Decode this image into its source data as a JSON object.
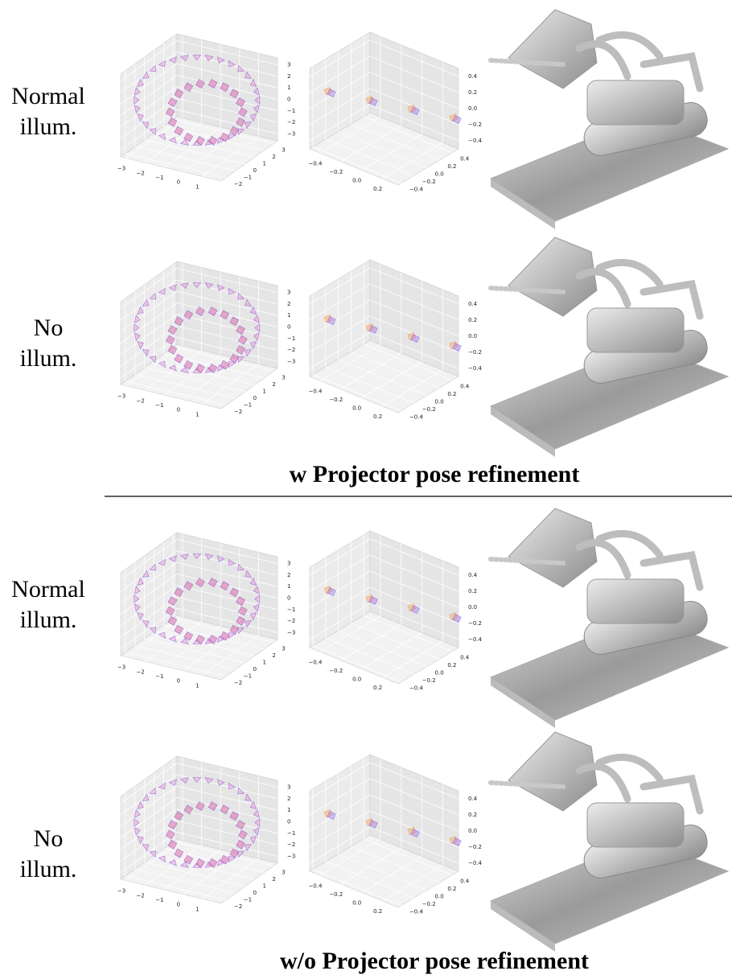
{
  "rows": [
    {
      "label": [
        "Normal",
        "illum."
      ],
      "plots": [
        {
          "xlim": [
            -3.3,
            2
          ],
          "xticks": [
            {
              "value": -3,
              "label": "−3"
            },
            {
              "value": -2,
              "label": "−2"
            },
            {
              "value": -1,
              "label": "−1"
            },
            0,
            1
          ],
          "ylim": [
            -2.5,
            3.4
          ],
          "yticks": [
            {
              "value": -2,
              "label": "−2"
            },
            {
              "value": -1,
              "label": "−1"
            },
            0,
            1,
            2,
            3
          ],
          "zlim": [
            -3.6,
            3.6
          ],
          "zticks": [
            {
              "value": -3,
              "label": "−3"
            },
            {
              "value": -2,
              "label": "−2"
            },
            {
              "value": -1,
              "label": "−1"
            },
            0,
            1,
            2,
            3
          ]
        },
        {
          "xlim": [
            -0.5,
            0.35
          ],
          "xticks": [
            {
              "value": -0.4,
              "label": "−0.4"
            },
            {
              "value": -0.2,
              "label": "−0.2"
            },
            {
              "value": 0,
              "label": "0.0"
            },
            0.2
          ],
          "ylim": [
            -0.45,
            0.5
          ],
          "yticks": [
            {
              "value": -0.4,
              "label": "−0.4"
            },
            {
              "value": -0.2,
              "label": "−0.2"
            },
            {
              "value": 0,
              "label": "0.0"
            },
            0.2,
            0.4
          ],
          "zlim": [
            -0.5,
            0.5
          ],
          "zticks": [
            {
              "value": -0.4,
              "label": "−0.4"
            },
            {
              "value": -0.2,
              "label": "−0.2"
            },
            {
              "value": 0,
              "label": "0.0"
            },
            0.2,
            0.4
          ]
        }
      ]
    },
    {
      "label": [
        "No",
        "illum."
      ],
      "plots": [
        {
          "xlim": [
            -3.3,
            2
          ],
          "xticks": [
            {
              "value": -3,
              "label": "−3"
            },
            {
              "value": -2,
              "label": "−2"
            },
            {
              "value": -1,
              "label": "−1"
            },
            0,
            1
          ],
          "ylim": [
            -2.5,
            3.4
          ],
          "yticks": [
            {
              "value": -2,
              "label": "−2"
            },
            {
              "value": -1,
              "label": "−1"
            },
            0,
            1,
            2,
            3
          ],
          "zlim": [
            -3.6,
            3.6
          ],
          "zticks": [
            {
              "value": -3,
              "label": "−3"
            },
            {
              "value": -2,
              "label": "−2"
            },
            {
              "value": -1,
              "label": "−1"
            },
            0,
            1,
            2,
            3
          ]
        },
        {
          "xlim": [
            -0.5,
            0.35
          ],
          "xticks": [
            {
              "value": -0.4,
              "label": "−0.4"
            },
            {
              "value": -0.2,
              "label": "−0.2"
            },
            {
              "value": 0,
              "label": "0.0"
            },
            0.2
          ],
          "ylim": [
            -0.45,
            0.5
          ],
          "yticks": [
            {
              "value": -0.4,
              "label": "−0.4"
            },
            {
              "value": -0.2,
              "label": "−0.2"
            },
            {
              "value": 0,
              "label": "0.0"
            },
            0.2,
            0.4
          ],
          "zlim": [
            -0.5,
            0.5
          ],
          "zticks": [
            {
              "value": -0.4,
              "label": "−0.4"
            },
            {
              "value": -0.2,
              "label": "−0.2"
            },
            {
              "value": 0,
              "label": "0.0"
            },
            0.2,
            0.4
          ]
        }
      ]
    },
    {
      "label": [
        "Normal",
        "illum."
      ],
      "plots": [
        {
          "xlim": [
            -3.3,
            2
          ],
          "xticks": [
            {
              "value": -3,
              "label": "−3"
            },
            {
              "value": -2,
              "label": "−2"
            },
            {
              "value": -1,
              "label": "−1"
            },
            0,
            1
          ],
          "ylim": [
            -2.5,
            3.4
          ],
          "yticks": [
            {
              "value": -2,
              "label": "−2"
            },
            {
              "value": -1,
              "label": "−1"
            },
            0,
            1,
            2,
            3
          ],
          "zlim": [
            -3.6,
            3.6
          ],
          "zticks": [
            {
              "value": -3,
              "label": "−3"
            },
            {
              "value": -2,
              "label": "−2"
            },
            {
              "value": -1,
              "label": "−1"
            },
            0,
            1,
            2,
            3
          ]
        },
        {
          "xlim": [
            -0.5,
            0.35
          ],
          "xticks": [
            {
              "value": -0.4,
              "label": "−0.4"
            },
            {
              "value": -0.2,
              "label": "−0.2"
            },
            {
              "value": 0,
              "label": "0.0"
            },
            0.2
          ],
          "ylim": [
            -0.45,
            0.5
          ],
          "yticks": [
            {
              "value": -0.4,
              "label": "−0.4"
            },
            {
              "value": -0.2,
              "label": "−0.2"
            },
            {
              "value": 0,
              "label": "0.0"
            },
            0.2,
            0.4
          ],
          "zlim": [
            -0.5,
            0.5
          ],
          "zticks": [
            {
              "value": -0.4,
              "label": "−0.4"
            },
            {
              "value": -0.2,
              "label": "−0.2"
            },
            {
              "value": 0,
              "label": "0.0"
            },
            0.2,
            0.4
          ]
        }
      ]
    },
    {
      "label": [
        "No",
        "illum."
      ],
      "plots": [
        {
          "xlim": [
            -3.3,
            2
          ],
          "xticks": [
            {
              "value": -3,
              "label": "−3"
            },
            {
              "value": -2,
              "label": "−2"
            },
            {
              "value": -1,
              "label": "−1"
            },
            0,
            1
          ],
          "ylim": [
            -2.5,
            3.4
          ],
          "yticks": [
            {
              "value": -2,
              "label": "−2"
            },
            {
              "value": -1,
              "label": "−1"
            },
            0,
            1,
            2,
            3
          ],
          "zlim": [
            -3.6,
            3.6
          ],
          "zticks": [
            {
              "value": -3,
              "label": "−3"
            },
            {
              "value": -2,
              "label": "−2"
            },
            {
              "value": -1,
              "label": "−1"
            },
            0,
            1,
            2,
            3
          ]
        },
        {
          "xlim": [
            -0.5,
            0.35
          ],
          "xticks": [
            {
              "value": -0.4,
              "label": "−0.4"
            },
            {
              "value": -0.2,
              "label": "−0.2"
            },
            {
              "value": 0,
              "label": "0.0"
            },
            0.2
          ],
          "ylim": [
            -0.45,
            0.5
          ],
          "yticks": [
            {
              "value": -0.4,
              "label": "−0.4"
            },
            {
              "value": -0.2,
              "label": "−0.2"
            },
            {
              "value": 0,
              "label": "0.0"
            },
            0.2,
            0.4
          ],
          "zlim": [
            -0.5,
            0.5
          ],
          "zticks": [
            {
              "value": -0.4,
              "label": "−0.4"
            },
            {
              "value": -0.2,
              "label": "−0.2"
            },
            {
              "value": 0,
              "label": "0.0"
            },
            0.2,
            0.4
          ]
        }
      ]
    }
  ],
  "sections": [
    {
      "title": "w Projector pose refinement"
    },
    {
      "title": "w/o Projector pose refinement"
    }
  ]
}
